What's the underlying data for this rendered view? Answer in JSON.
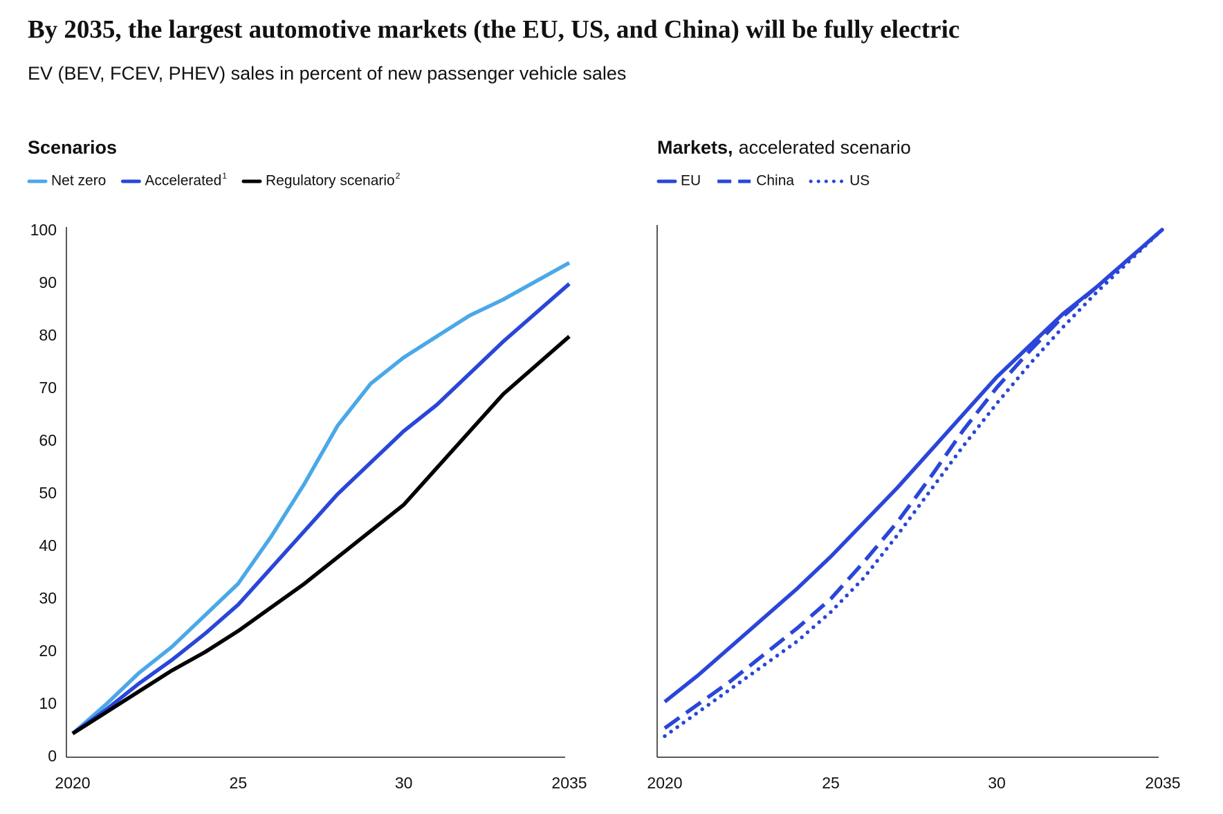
{
  "title": "By 2035, the largest automotive markets (the EU, US, and China) will be fully electric",
  "subtitle": "EV (BEV, FCEV, PHEV) sales in percent of new passenger vehicle sales",
  "chart_data": [
    {
      "type": "line",
      "title": "Scenarios",
      "x": [
        2020,
        2021,
        2022,
        2023,
        2024,
        2025,
        2026,
        2027,
        2028,
        2029,
        2030,
        2031,
        2032,
        2033,
        2034,
        2035
      ],
      "series": [
        {
          "name": "Net zero",
          "color": "#4ba8e8",
          "dash": "solid",
          "values": [
            4.5,
            10,
            16,
            21,
            27,
            33,
            42,
            52,
            63,
            71,
            76,
            80,
            84,
            87,
            90.5,
            94
          ]
        },
        {
          "name": "Accelerated",
          "note": "1",
          "color": "#2a46d8",
          "dash": "solid",
          "values": [
            4.5,
            9,
            14,
            18.5,
            23.5,
            29,
            36,
            43,
            50,
            56,
            62,
            67,
            73,
            79,
            84.5,
            90
          ]
        },
        {
          "name": "Regulatory scenario",
          "note": "2",
          "color": "#000000",
          "dash": "solid",
          "values": [
            4.5,
            8.5,
            12.5,
            16.5,
            20,
            24,
            28.5,
            33,
            38,
            43,
            48,
            55,
            62,
            69,
            74.5,
            80
          ]
        }
      ],
      "xlim": [
        2020,
        2035
      ],
      "xticks": [
        2020,
        {
          "value": 2025,
          "label": "25"
        },
        {
          "value": 2030,
          "label": "30"
        },
        2035
      ],
      "ylim": [
        0,
        100
      ],
      "yticks": [
        0,
        10,
        20,
        30,
        40,
        50,
        60,
        70,
        80,
        90,
        100
      ]
    },
    {
      "type": "line",
      "title": "Markets,",
      "subtitle": "accelerated scenario",
      "x": [
        2020,
        2021,
        2022,
        2023,
        2024,
        2025,
        2026,
        2027,
        2028,
        2029,
        2030,
        2031,
        2032,
        2033,
        2034,
        2035
      ],
      "series": [
        {
          "name": "EU",
          "color": "#2a46d8",
          "dash": "solid",
          "values": [
            10.5,
            15.5,
            21,
            26.5,
            32,
            38,
            44.5,
            51,
            58,
            65,
            72,
            78,
            84,
            89,
            94.5,
            100
          ]
        },
        {
          "name": "China",
          "color": "#2a46d8",
          "dash": "dashed",
          "values": [
            5.5,
            10,
            14.5,
            19.5,
            24.5,
            30,
            37,
            44.5,
            53,
            62,
            70,
            77,
            83.5,
            89,
            94.5,
            100
          ]
        },
        {
          "name": "US",
          "color": "#2a46d8",
          "dash": "dotted",
          "values": [
            4,
            8.5,
            13,
            17.5,
            22,
            27.5,
            34,
            42,
            50.5,
            59,
            67,
            74.5,
            81.5,
            88,
            94,
            100
          ]
        }
      ],
      "xlim": [
        2020,
        2035
      ],
      "xticks": [
        2020,
        {
          "value": 2025,
          "label": "25"
        },
        {
          "value": 2030,
          "label": "30"
        },
        2035
      ],
      "ylim": [
        0,
        100
      ]
    }
  ]
}
